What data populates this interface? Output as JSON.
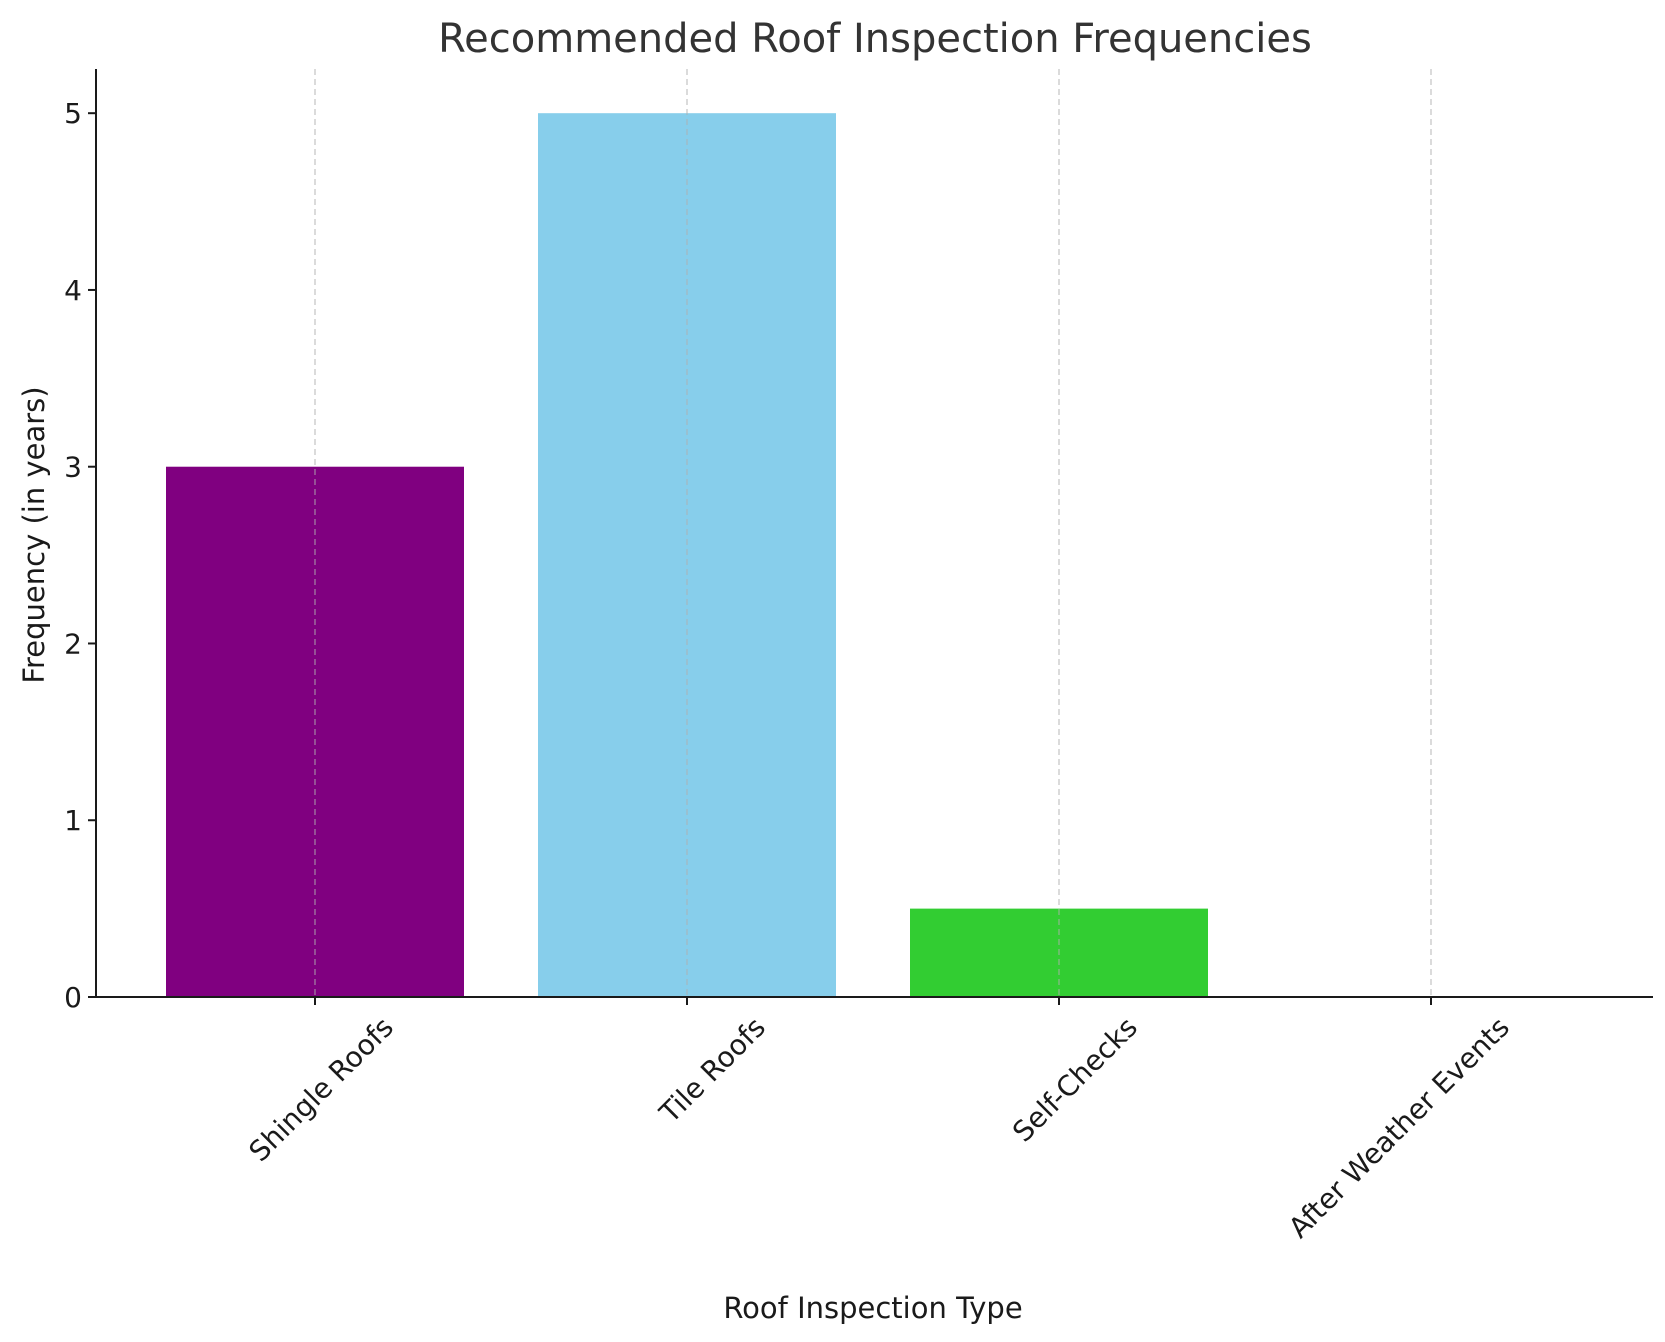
{
  "chart_data": {
    "type": "bar",
    "title": "Recommended Roof Inspection Frequencies",
    "xlabel": "Roof Inspection Type",
    "ylabel": "Frequency (in years)",
    "categories": [
      "Shingle Roofs",
      "Tile Roofs",
      "Self-Checks",
      "After Weather Events"
    ],
    "values": [
      3,
      5,
      0.5,
      0
    ],
    "colors": [
      "#800080",
      "#87ceeb",
      "#32cd32",
      "#ff0000"
    ],
    "yticks": [
      "0",
      "1",
      "2",
      "3",
      "4",
      "5"
    ],
    "ylim": [
      0,
      5.25
    ],
    "grid": "x-only, dashed",
    "legend": "none"
  }
}
